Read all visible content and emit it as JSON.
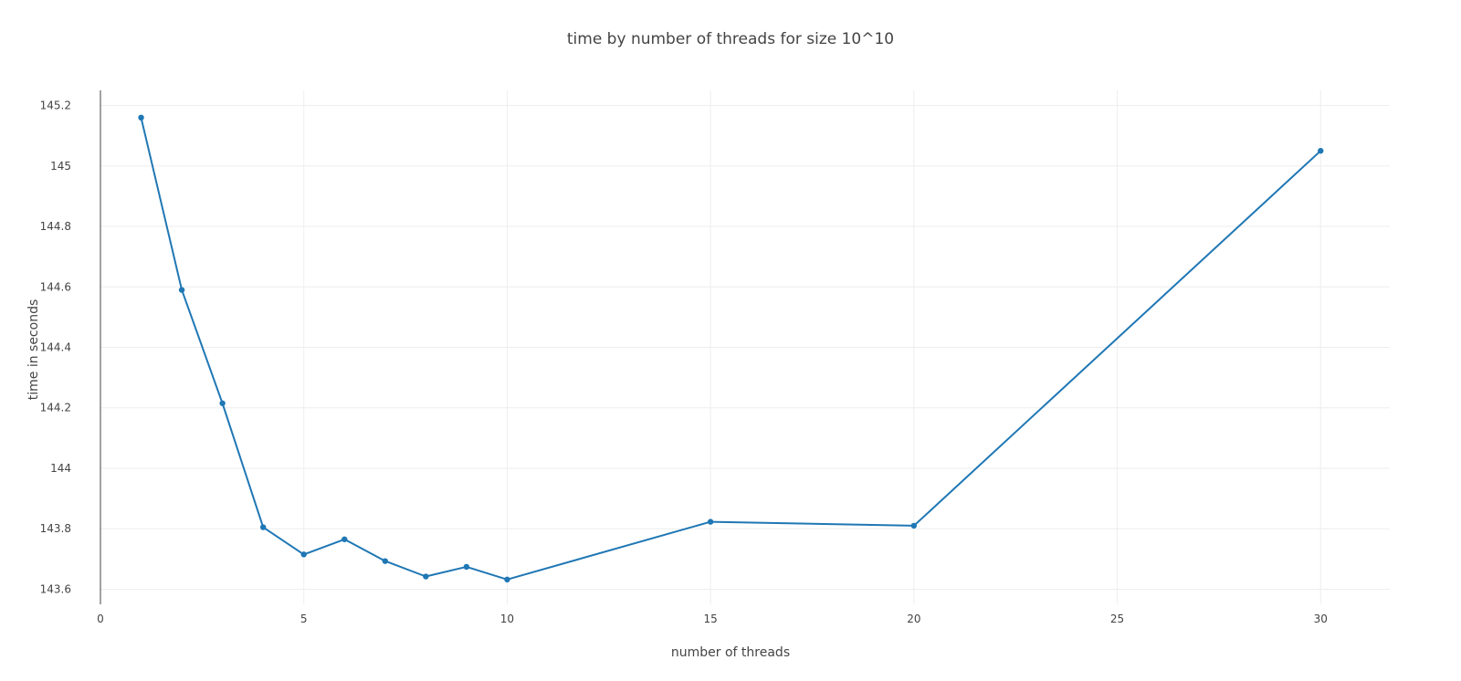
{
  "chart_data": {
    "type": "line",
    "title": "time by number of threads for size 10^10",
    "xlabel": "number of threads",
    "ylabel": "time in seconds",
    "xlim": [
      0,
      31.7
    ],
    "ylim": [
      143.55,
      145.25
    ],
    "x_ticks": [
      0,
      5,
      10,
      15,
      20,
      25,
      30
    ],
    "x_tick_labels": [
      "0",
      "5",
      "10",
      "15",
      "20",
      "25",
      "30"
    ],
    "y_ticks": [
      143.6,
      143.8,
      144,
      144.2,
      144.4,
      144.6,
      144.8,
      145,
      145.2
    ],
    "y_tick_labels": [
      "143.6",
      "143.8",
      "144",
      "144.2",
      "144.4",
      "144.6",
      "144.8",
      "145",
      "145.2"
    ],
    "grid": true,
    "series": [
      {
        "color": "#1f77b4",
        "x": [
          1,
          2,
          3,
          4,
          5,
          6,
          7,
          8,
          9,
          10,
          15,
          20,
          30
        ],
        "y": [
          145.16,
          144.59,
          144.215,
          143.805,
          143.715,
          143.765,
          143.693,
          143.642,
          143.674,
          143.632,
          143.823,
          143.81,
          145.05
        ]
      }
    ]
  }
}
